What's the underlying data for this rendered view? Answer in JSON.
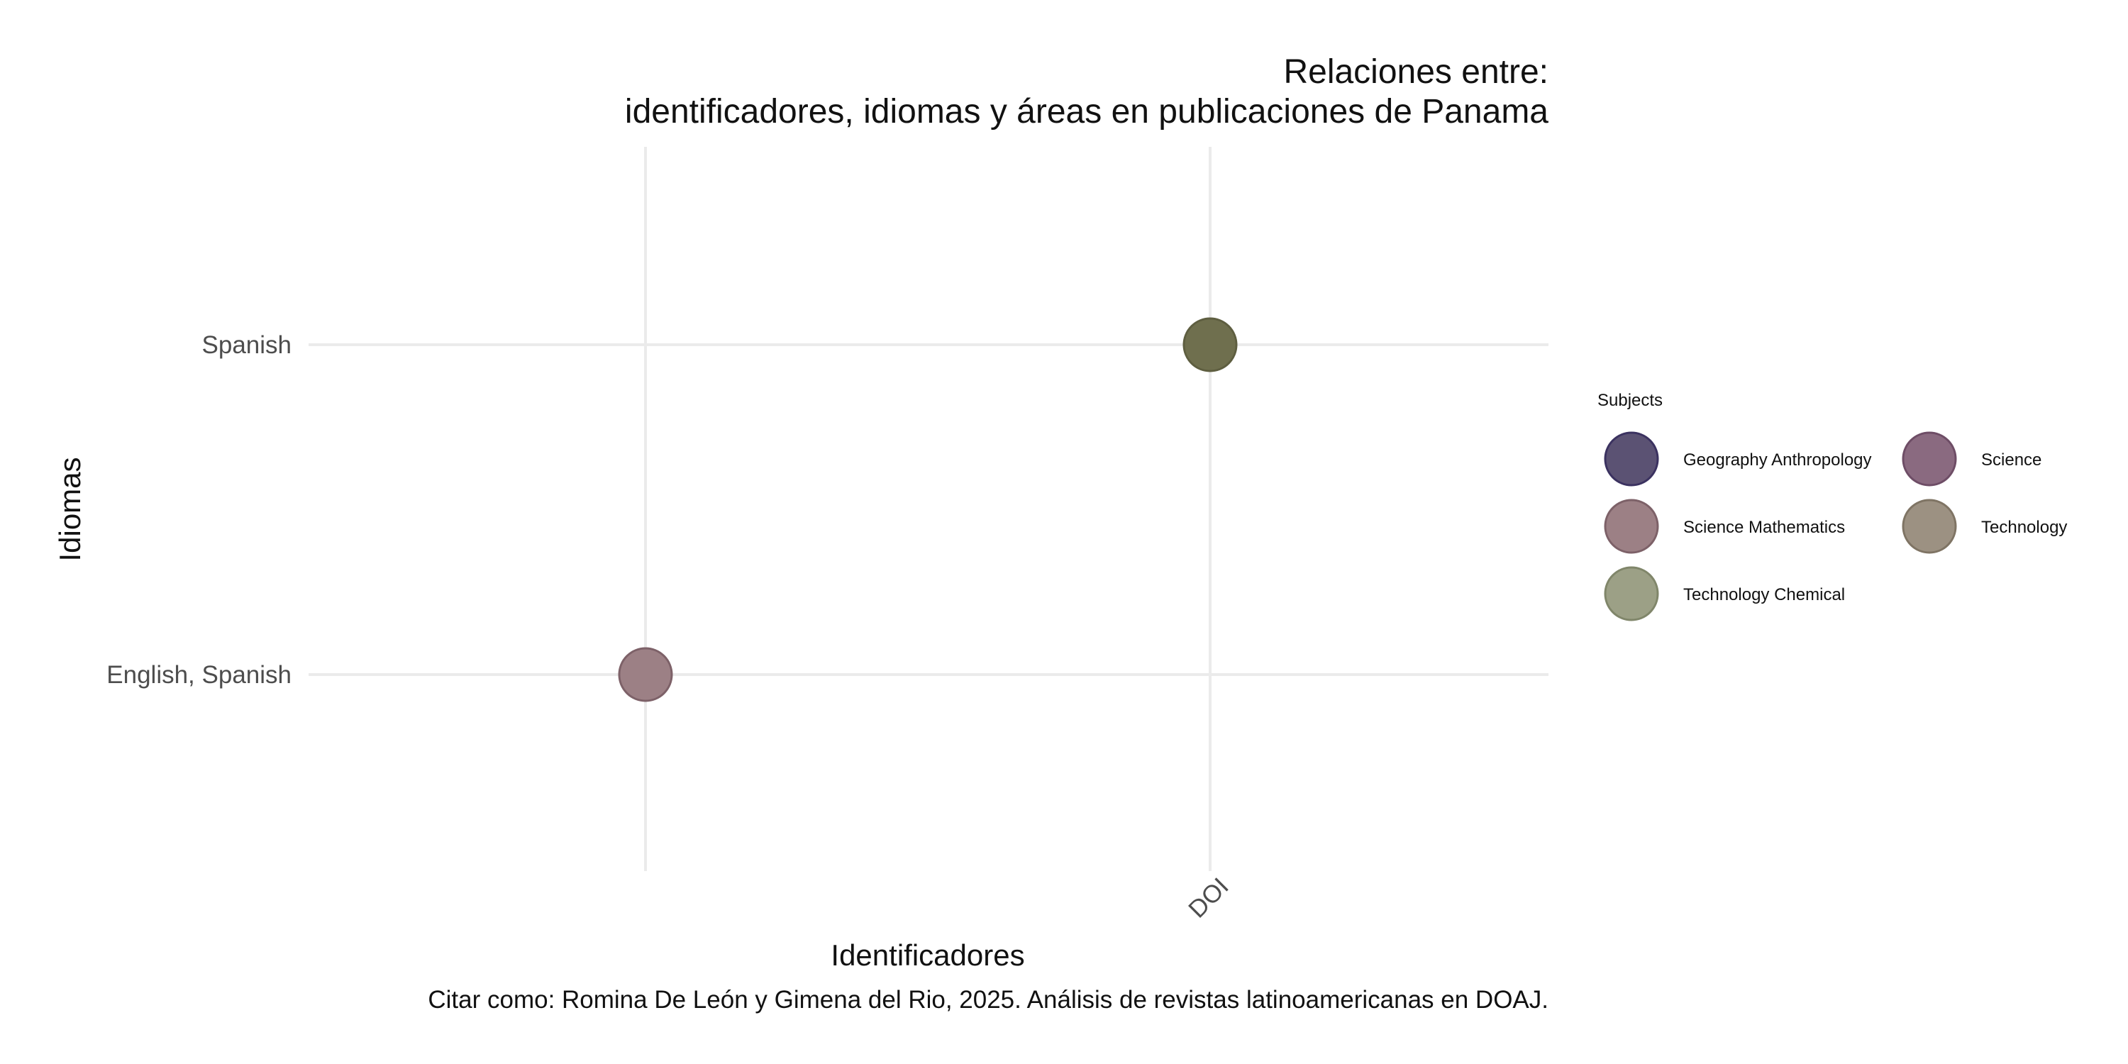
{
  "chart_data": {
    "type": "scatter",
    "title": "Relaciones entre:",
    "subtitle": "identificadores, idiomas y áreas en publicaciones de Panama",
    "xlabel": "Identificadores",
    "ylabel": "Idiomas",
    "caption": "Citar como: Romina De León y Gimena del Rio, 2025. Análisis de revistas latinoamericanas en DOAJ.",
    "x_categories": [
      "",
      "DOI"
    ],
    "y_categories": [
      "English, Spanish",
      "Spanish"
    ],
    "grid": true,
    "legend": {
      "title": "Subjects",
      "position": "right",
      "entries": [
        {
          "name": "Geography Anthropology",
          "color": "#5b5273",
          "stroke": "#3b3260"
        },
        {
          "name": "Science",
          "color": "#8a6a80",
          "stroke": "#6e4d66"
        },
        {
          "name": "Science Mathematics",
          "color": "#9c8085",
          "stroke": "#7d6168"
        },
        {
          "name": "Technology",
          "color": "#9c9182",
          "stroke": "#7f7464"
        },
        {
          "name": "Technology Chemical",
          "color": "#9ca086",
          "stroke": "#80866a"
        }
      ]
    },
    "points": [
      {
        "x": "DOI",
        "y": "Spanish",
        "color": "#6f6f4e",
        "stroke": "#5e5e40"
      },
      {
        "x": "",
        "y": "English, Spanish",
        "color": "#9c8085",
        "stroke": "#7d6168"
      }
    ]
  }
}
